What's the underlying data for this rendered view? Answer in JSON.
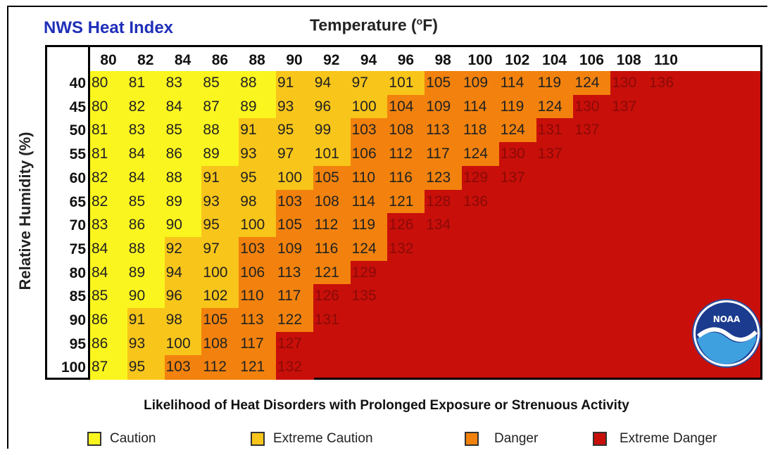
{
  "chart_data": {
    "type": "heatmap",
    "title": "NWS Heat Index",
    "xlabel": "Temperature (°F)",
    "ylabel": "Relative Humidity (%)",
    "temperatures": [
      "80",
      "82",
      "84",
      "86",
      "88",
      "90",
      "92",
      "94",
      "96",
      "98",
      "100",
      "102",
      "104",
      "106",
      "108",
      "110"
    ],
    "humidities": [
      "40",
      "45",
      "50",
      "55",
      "60",
      "65",
      "70",
      "75",
      "80",
      "85",
      "90",
      "95",
      "100"
    ],
    "values": [
      [
        80,
        81,
        83,
        85,
        88,
        91,
        94,
        97,
        101,
        105,
        109,
        114,
        119,
        124,
        130,
        136
      ],
      [
        80,
        82,
        84,
        87,
        89,
        93,
        96,
        100,
        104,
        109,
        114,
        119,
        124,
        130,
        137,
        null
      ],
      [
        81,
        83,
        85,
        88,
        91,
        95,
        99,
        103,
        108,
        113,
        118,
        124,
        131,
        137,
        null,
        null
      ],
      [
        81,
        84,
        86,
        89,
        93,
        97,
        101,
        106,
        112,
        117,
        124,
        130,
        137,
        null,
        null,
        null
      ],
      [
        82,
        84,
        88,
        91,
        95,
        100,
        105,
        110,
        116,
        123,
        129,
        137,
        null,
        null,
        null,
        null
      ],
      [
        82,
        85,
        89,
        93,
        98,
        103,
        108,
        114,
        121,
        128,
        136,
        null,
        null,
        null,
        null,
        null
      ],
      [
        83,
        86,
        90,
        95,
        100,
        105,
        112,
        119,
        126,
        134,
        null,
        null,
        null,
        null,
        null,
        null
      ],
      [
        84,
        88,
        92,
        97,
        103,
        109,
        116,
        124,
        132,
        null,
        null,
        null,
        null,
        null,
        null,
        null
      ],
      [
        84,
        89,
        94,
        100,
        106,
        113,
        121,
        129,
        null,
        null,
        null,
        null,
        null,
        null,
        null,
        null
      ],
      [
        85,
        90,
        96,
        102,
        110,
        117,
        126,
        135,
        null,
        null,
        null,
        null,
        null,
        null,
        null,
        null
      ],
      [
        86,
        91,
        98,
        105,
        113,
        122,
        131,
        null,
        null,
        null,
        null,
        null,
        null,
        null,
        null,
        null
      ],
      [
        86,
        93,
        100,
        108,
        117,
        127,
        null,
        null,
        null,
        null,
        null,
        null,
        null,
        null,
        null,
        null
      ],
      [
        87,
        95,
        103,
        112,
        121,
        132,
        null,
        null,
        null,
        null,
        null,
        null,
        null,
        null,
        null,
        null
      ]
    ],
    "categories": [
      {
        "name": "Caution",
        "max": 90,
        "color": "#fbf51f"
      },
      {
        "name": "Extreme Caution",
        "max": 102,
        "color": "#f8c51a"
      },
      {
        "name": "Danger",
        "max": 125,
        "color": "#f2820d"
      },
      {
        "name": "Extreme Danger",
        "max": 999,
        "color": "#c80f0a"
      }
    ],
    "footnote": "Likelihood of Heat Disorders with Prolonged Exposure or Strenuous Activity"
  },
  "logo_text": "NOAA"
}
